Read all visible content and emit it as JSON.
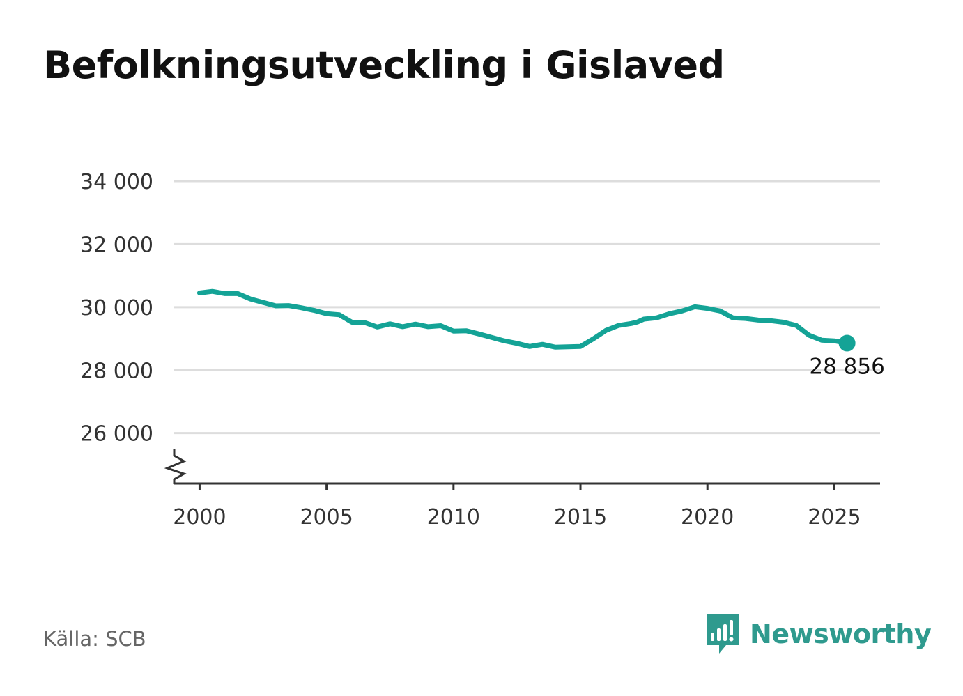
{
  "title": "Befolkningsutveckling i Gislaved",
  "source": "Källa: SCB",
  "brand": {
    "name": "Newsworthy",
    "icon": "newsworthy-logo-icon",
    "color": "#2f9a8e"
  },
  "chart_data": {
    "type": "line",
    "title": "Befolkningsutveckling i Gislaved",
    "xlabel": "",
    "ylabel": "",
    "line_color": "#14a396",
    "grid": true,
    "axis_break": true,
    "xlim": [
      1999,
      2026.8
    ],
    "ylim": [
      24400,
      34000
    ],
    "x_ticks": [
      2000,
      2005,
      2010,
      2015,
      2020,
      2025
    ],
    "x_tick_labels": [
      "2000",
      "2005",
      "2010",
      "2015",
      "2020",
      "2025"
    ],
    "y_ticks": [
      26000,
      28000,
      30000,
      32000,
      34000
    ],
    "y_tick_labels": [
      "26 000",
      "28 000",
      "30 000",
      "32 000",
      "34 000"
    ],
    "end_label": "28 856",
    "series": [
      {
        "name": "",
        "x": [
          2000.0,
          2000.5,
          2001.0,
          2001.5,
          2002.0,
          2002.5,
          2003.0,
          2003.5,
          2004.0,
          2004.5,
          2005.0,
          2005.5,
          2006.0,
          2006.5,
          2007.0,
          2007.5,
          2008.0,
          2008.5,
          2009.0,
          2009.5,
          2010.0,
          2010.5,
          2011.0,
          2011.5,
          2012.0,
          2012.5,
          2013.0,
          2013.5,
          2014.0,
          2014.5,
          2015.0,
          2015.5,
          2016.0,
          2016.5,
          2017.0,
          2017.25,
          2017.5,
          2018.0,
          2018.5,
          2019.0,
          2019.5,
          2020.0,
          2020.5,
          2021.0,
          2021.5,
          2022.0,
          2022.5,
          2023.0,
          2023.5,
          2024.0,
          2024.5,
          2025.0,
          2025.5
        ],
        "values": [
          30450,
          30500,
          30430,
          30430,
          30260,
          30150,
          30040,
          30050,
          29980,
          29900,
          29790,
          29760,
          29520,
          29510,
          29370,
          29470,
          29380,
          29460,
          29380,
          29410,
          29240,
          29250,
          29150,
          29040,
          28930,
          28850,
          28750,
          28820,
          28730,
          28740,
          28750,
          28990,
          29260,
          29420,
          29480,
          29530,
          29620,
          29660,
          29790,
          29880,
          30010,
          29960,
          29880,
          29660,
          29640,
          29590,
          29570,
          29520,
          29420,
          29110,
          28950,
          28930,
          28856
        ]
      }
    ]
  }
}
